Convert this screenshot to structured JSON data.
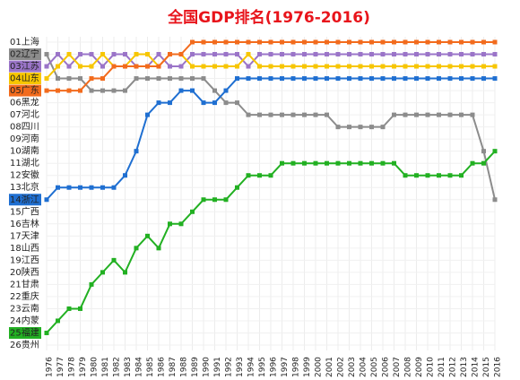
{
  "chart_data": {
    "type": "bump",
    "title": "全国GDP排名(1976-2016)",
    "categories": [
      "1976",
      "1977",
      "1978",
      "1979",
      "1980",
      "1981",
      "1982",
      "1983",
      "1984",
      "1985",
      "1986",
      "1987",
      "1988",
      "1989",
      "1990",
      "1991",
      "1992",
      "1993",
      "1994",
      "1995",
      "1996",
      "1997",
      "1998",
      "1999",
      "2000",
      "2001",
      "2002",
      "2003",
      "2004",
      "2005",
      "2006",
      "2007",
      "2008",
      "2009",
      "2010",
      "2011",
      "2012",
      "2013",
      "2014",
      "2015",
      "2016"
    ],
    "ylim": [
      1,
      26
    ],
    "yticks": [
      {
        "value": 1,
        "label": "01上海"
      },
      {
        "value": 2,
        "label": "02辽宁"
      },
      {
        "value": 3,
        "label": "03江苏"
      },
      {
        "value": 4,
        "label": "04山东"
      },
      {
        "value": 5,
        "label": "05广东"
      },
      {
        "value": 6,
        "label": "06黑龙"
      },
      {
        "value": 7,
        "label": "07河北"
      },
      {
        "value": 8,
        "label": "08四川"
      },
      {
        "value": 9,
        "label": "09河南"
      },
      {
        "value": 10,
        "label": "10湖南"
      },
      {
        "value": 11,
        "label": "11湖北"
      },
      {
        "value": 12,
        "label": "12安徽"
      },
      {
        "value": 13,
        "label": "13北京"
      },
      {
        "value": 14,
        "label": "14浙江"
      },
      {
        "value": 15,
        "label": "15广西"
      },
      {
        "value": 16,
        "label": "16吉林"
      },
      {
        "value": 17,
        "label": "17天津"
      },
      {
        "value": 18,
        "label": "18山西"
      },
      {
        "value": 19,
        "label": "19江西"
      },
      {
        "value": 20,
        "label": "20陕西"
      },
      {
        "value": 21,
        "label": "21甘肃"
      },
      {
        "value": 22,
        "label": "22重庆"
      },
      {
        "value": 23,
        "label": "23云南"
      },
      {
        "value": 24,
        "label": "24内蒙"
      },
      {
        "value": 25,
        "label": "25福建"
      },
      {
        "value": 26,
        "label": "26贵州"
      }
    ],
    "grid": true,
    "series": [
      {
        "name": "辽宁",
        "color": "#8c8c8c",
        "values": [
          2,
          4,
          4,
          4,
          5,
          5,
          5,
          5,
          4,
          4,
          4,
          4,
          4,
          4,
          4,
          5,
          6,
          6,
          7,
          7,
          7,
          7,
          7,
          7,
          7,
          7,
          8,
          8,
          8,
          8,
          8,
          7,
          7,
          7,
          7,
          7,
          7,
          7,
          7,
          10,
          14
        ]
      },
      {
        "name": "江苏",
        "color": "#9a74c8",
        "values": [
          3,
          2,
          3,
          2,
          2,
          3,
          2,
          2,
          3,
          3,
          2,
          3,
          3,
          2,
          2,
          2,
          2,
          2,
          3,
          2,
          2,
          2,
          2,
          2,
          2,
          2,
          2,
          2,
          2,
          2,
          2,
          2,
          2,
          2,
          2,
          2,
          2,
          2,
          2,
          2,
          2
        ]
      },
      {
        "name": "山东",
        "color": "#f7c600",
        "values": [
          4,
          3,
          2,
          3,
          3,
          2,
          3,
          3,
          2,
          2,
          3,
          2,
          2,
          3,
          3,
          3,
          3,
          3,
          2,
          3,
          3,
          3,
          3,
          3,
          3,
          3,
          3,
          3,
          3,
          3,
          3,
          3,
          3,
          3,
          3,
          3,
          3,
          3,
          3,
          3,
          3
        ]
      },
      {
        "name": "广东",
        "color": "#f26b1d",
        "values": [
          5,
          5,
          5,
          5,
          4,
          4,
          3,
          3,
          3,
          3,
          3,
          2,
          2,
          1,
          1,
          1,
          1,
          1,
          1,
          1,
          1,
          1,
          1,
          1,
          1,
          1,
          1,
          1,
          1,
          1,
          1,
          1,
          1,
          1,
          1,
          1,
          1,
          1,
          1,
          1,
          1
        ]
      },
      {
        "name": "浙江",
        "color": "#1f6fd1",
        "values": [
          14,
          13,
          13,
          13,
          13,
          13,
          13,
          12,
          10,
          7,
          6,
          6,
          5,
          5,
          6,
          6,
          5,
          4,
          4,
          4,
          4,
          4,
          4,
          4,
          4,
          4,
          4,
          4,
          4,
          4,
          4,
          4,
          4,
          4,
          4,
          4,
          4,
          4,
          4,
          4,
          4
        ]
      },
      {
        "name": "福建",
        "color": "#22b022",
        "values": [
          25,
          24,
          23,
          23,
          21,
          20,
          19,
          20,
          18,
          17,
          18,
          16,
          16,
          15,
          14,
          14,
          14,
          13,
          12,
          12,
          12,
          11,
          11,
          11,
          11,
          11,
          11,
          11,
          11,
          11,
          11,
          11,
          12,
          12,
          12,
          12,
          12,
          12,
          11,
          11,
          10
        ]
      }
    ]
  }
}
